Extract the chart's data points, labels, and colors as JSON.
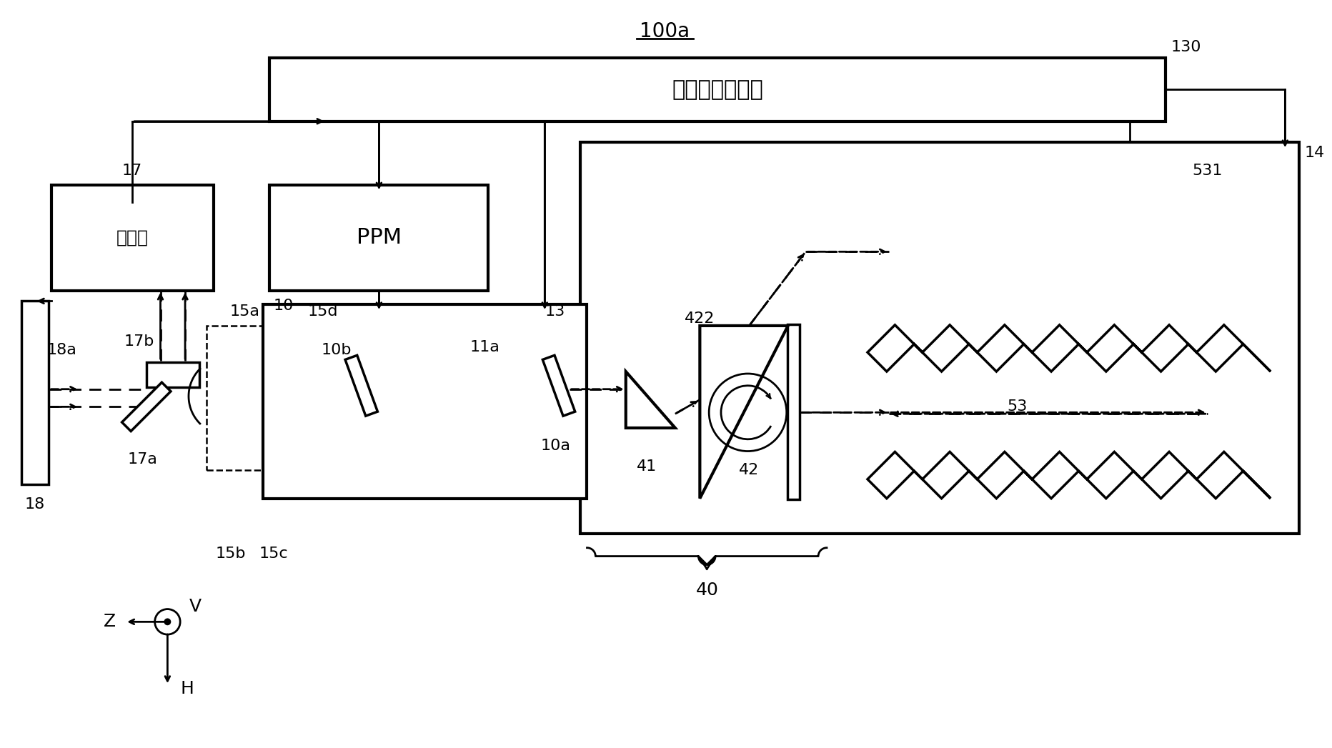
{
  "title": "100a",
  "bg_color": "#ffffff",
  "figsize": [
    18.65,
    10.47
  ],
  "dpi": 100,
  "labels": {
    "title": "100a",
    "laser_ctrl": "激光控制处理器",
    "detector_box": "检测器",
    "ppm_box": "PPM",
    "l130": "130",
    "l14": "14",
    "l17": "17",
    "l18a": "18a",
    "l17b": "17b",
    "l18": "18",
    "l17a": "17a",
    "l15a": "15a",
    "l15d": "15d",
    "l15b": "15b",
    "l15c": "15c",
    "l10": "10",
    "l10b": "10b",
    "l11a": "11a",
    "l10a": "10a",
    "l13": "13",
    "l41": "41",
    "l42": "42",
    "l422": "422",
    "l40": "40",
    "l53": "53",
    "l531": "531",
    "lZ": "Z",
    "lV": "V",
    "lH": "H"
  }
}
